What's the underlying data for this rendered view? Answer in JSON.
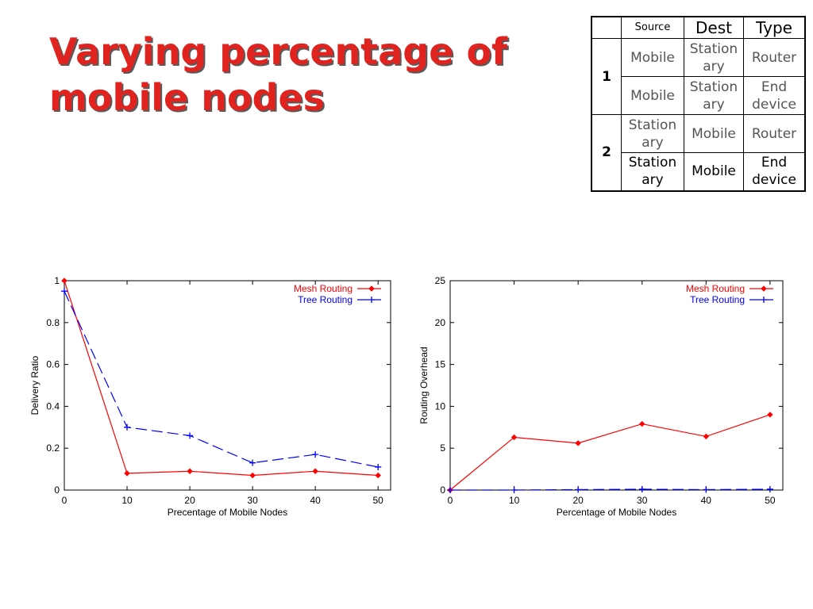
{
  "title": "Varying percentage of mobile nodes",
  "table": {
    "headers": [
      "Source",
      "Dest",
      "Type"
    ],
    "groups": [
      {
        "label": "1",
        "rows": [
          {
            "source": "Mobile",
            "dest": "Station ary",
            "type": "Router"
          },
          {
            "source": "Mobile",
            "dest": "Station ary",
            "type": "End device"
          }
        ]
      },
      {
        "label": "2",
        "rows": [
          {
            "source": "Station ary",
            "dest": "Mobile",
            "type": "Router"
          },
          {
            "source": "Station ary",
            "dest": "Mobile",
            "type": "End device"
          }
        ]
      }
    ]
  },
  "chart_data": [
    {
      "type": "line",
      "xlabel": "Precentage of Mobile Nodes",
      "ylabel": "Delivery Ratio",
      "xlim": [
        0,
        52
      ],
      "ylim": [
        0,
        1
      ],
      "xticks": [
        "0",
        "10",
        "20",
        "30",
        "40",
        "50"
      ],
      "yticks": [
        "0",
        "0.2",
        "0.4",
        "0.6",
        "0.8",
        "1"
      ],
      "legend_position": "top-right",
      "x": [
        0,
        10,
        20,
        30,
        40,
        50
      ],
      "series": [
        {
          "name": "Mesh Routing",
          "color": "#ff0000",
          "dash": "solid",
          "marker": "diamond",
          "values": [
            1.0,
            0.08,
            0.09,
            0.07,
            0.09,
            0.07
          ]
        },
        {
          "name": "Tree Routing",
          "color": "#0000ff",
          "dash": "dashed",
          "marker": "plus",
          "values": [
            0.95,
            0.3,
            0.26,
            0.13,
            0.17,
            0.11
          ]
        }
      ]
    },
    {
      "type": "line",
      "xlabel": "Percentage of Mobile Nodes",
      "ylabel": "Routing Overhead",
      "xlim": [
        0,
        52
      ],
      "ylim": [
        0,
        25
      ],
      "xticks": [
        "0",
        "10",
        "20",
        "30",
        "40",
        "50"
      ],
      "yticks": [
        "0",
        "5",
        "10",
        "15",
        "20",
        "25"
      ],
      "legend_position": "top-right",
      "x": [
        0,
        10,
        20,
        30,
        40,
        50
      ],
      "series": [
        {
          "name": "Mesh Routing",
          "color": "#ff0000",
          "dash": "solid",
          "marker": "diamond",
          "values": [
            0.0,
            6.3,
            5.6,
            7.9,
            6.4,
            9.0
          ]
        },
        {
          "name": "Tree Routing",
          "color": "#0000ff",
          "dash": "dashed",
          "marker": "plus",
          "values": [
            0.0,
            0.0,
            0.05,
            0.1,
            0.05,
            0.1
          ]
        }
      ]
    }
  ]
}
